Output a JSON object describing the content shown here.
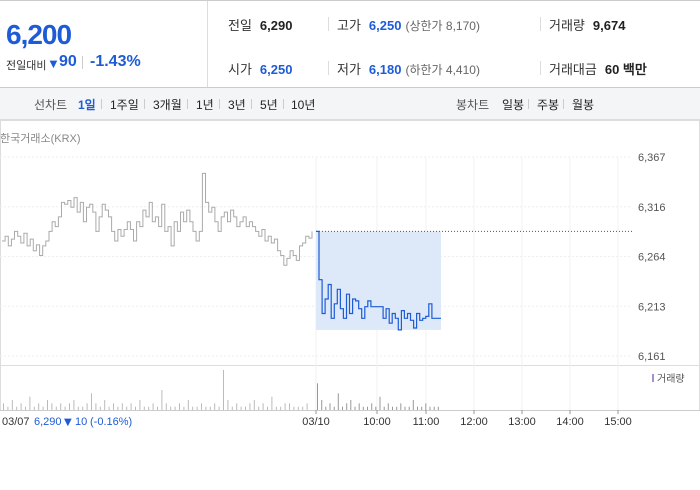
{
  "summary": {
    "price": "6,200",
    "change_label": "전일대비",
    "change_arrow": "▼",
    "change_value": "90",
    "change_pct": "-1.43%",
    "prev_close_label": "전일",
    "prev_close": "6,290",
    "high_label": "고가",
    "high": "6,250",
    "upper_limit": "(상한가 8,170)",
    "volume_label": "거래량",
    "volume": "9,674",
    "open_label": "시가",
    "open": "6,250",
    "low_label": "저가",
    "low": "6,180",
    "lower_limit": "(하한가 4,410)",
    "amount_label": "거래대금",
    "amount": "60 백만"
  },
  "tabs": {
    "line_label": "선차트",
    "line_periods": [
      "1일",
      "1주일",
      "3개월",
      "1년",
      "3년",
      "5년",
      "10년"
    ],
    "active_period": "1일",
    "candle_label": "봉차트",
    "candle_periods": [
      "일봉",
      "주봉",
      "월봉"
    ]
  },
  "source": "한국거래소(KRX)",
  "legend_volume": "거래량",
  "bottom_info": {
    "date": "03/07",
    "price": "6,290",
    "arrow": "▼",
    "change": "10",
    "pct": "(-0.16%)"
  },
  "colors": {
    "accent": "#1d5bd7",
    "prev_line": "#aaaaaa",
    "band": "#dde8f8"
  },
  "chart_data": {
    "type": "line",
    "y_ticks": [
      "6,367",
      "6,316",
      "6,264",
      "6,213",
      "6,161"
    ],
    "ylim": [
      6161,
      6367
    ],
    "x_ticks": [
      "03/10",
      "10:00",
      "11:00",
      "12:00",
      "13:00",
      "14:00",
      "15:00"
    ],
    "prev_day_label": "03/07",
    "prev_close": 6290,
    "series": [
      {
        "name": "03/07",
        "x_min": 0,
        "x_max": 100,
        "values": [
          6280,
          6285,
          6275,
          6282,
          6290,
          6285,
          6278,
          6288,
          6275,
          6282,
          6270,
          6276,
          6265,
          6275,
          6280,
          6290,
          6300,
          6295,
          6305,
          6320,
          6318,
          6322,
          6315,
          6325,
          6310,
          6320,
          6300,
          6315,
          6318,
          6310,
          6290,
          6305,
          6318,
          6312,
          6305,
          6290,
          6280,
          6292,
          6285,
          6292,
          6300,
          6292,
          6280,
          6300,
          6295,
          6312,
          6305,
          6320,
          6300,
          6305,
          6295,
          6318,
          6290,
          6295,
          6275,
          6300,
          6290,
          6310,
          6300,
          6312,
          6300,
          6290,
          6280,
          6290,
          6350,
          6320,
          6310,
          6315,
          6300,
          6290,
          6305,
          6310,
          6300,
          6312,
          6305,
          6295,
          6300,
          6305,
          6295,
          6300,
          6295,
          6290,
          6285,
          6292,
          6280,
          6285,
          6278,
          6282,
          6270,
          6265,
          6255,
          6262,
          6270,
          6265,
          6260,
          6275,
          6278,
          6285,
          6283,
          6290
        ],
        "style": "grey"
      },
      {
        "name": "03/10",
        "x_min": 0,
        "x_max": 100,
        "values": [
          6290,
          6240,
          6205,
          6220,
          6235,
          6200,
          6215,
          6230,
          6210,
          6200,
          6225,
          6205,
          6220,
          6218,
          6210,
          6200,
          6212,
          6218,
          6212,
          6212,
          6212,
          6212,
          6200,
          6210,
          6195,
          6205,
          6200,
          6188,
          6208,
          6200,
          6205,
          6198,
          6190,
          6205,
          6198,
          6200,
          6202,
          6215,
          6200,
          6200,
          6200,
          6200
        ],
        "style": "blue"
      }
    ],
    "volume": {
      "prev_day": [
        2,
        1,
        3,
        1,
        2,
        1,
        4,
        1,
        2,
        1,
        3,
        2,
        1,
        2,
        1,
        2,
        3,
        1,
        1,
        2,
        5,
        2,
        1,
        3,
        1,
        2,
        1,
        2,
        1,
        2,
        1,
        3,
        1,
        1,
        2,
        1,
        6,
        2,
        1,
        1,
        2,
        1,
        3,
        1,
        1,
        2,
        1,
        1,
        2,
        1,
        12,
        3,
        1,
        2,
        1,
        1,
        2,
        3,
        1,
        2,
        1,
        4,
        1,
        1,
        2,
        2,
        1,
        1,
        1,
        2
      ],
      "today": [
        8,
        3,
        1,
        2,
        1,
        5,
        1,
        2,
        3,
        1,
        2,
        1,
        1,
        2,
        1,
        4,
        1,
        2,
        1,
        1,
        2,
        1,
        1,
        3,
        1,
        1,
        2,
        1,
        1,
        1
      ]
    }
  }
}
